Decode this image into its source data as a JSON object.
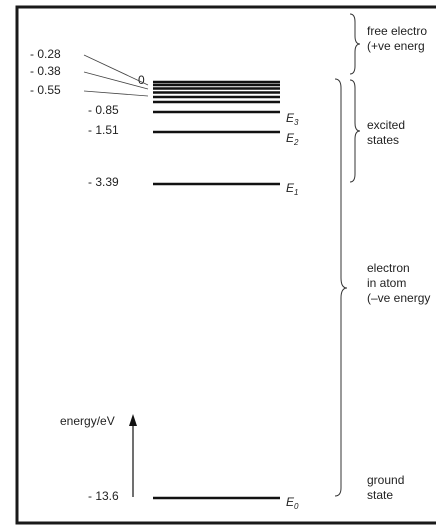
{
  "energy_levels": [
    {
      "value": "- 0.28",
      "dark": false
    },
    {
      "value": "- 0.38",
      "dark": false
    },
    {
      "value": "- 0.55",
      "dark": false
    },
    {
      "value": "- 0.85",
      "dark": false
    },
    {
      "value": "- 1.51",
      "dark": false
    },
    {
      "value": "- 3.39",
      "dark": false
    },
    {
      "value": "- 13.6",
      "dark": false
    }
  ],
  "zero_label": "0",
  "level_names": [
    {
      "letter": "E",
      "sub": "3"
    },
    {
      "letter": "E",
      "sub": "2"
    },
    {
      "letter": "E",
      "sub": "1"
    },
    {
      "letter": "E",
      "sub": "0"
    }
  ],
  "axis_label": "energy/eV",
  "regions": {
    "free": [
      "free electro",
      "(+ve energ"
    ],
    "excited": [
      "excited",
      "states"
    ],
    "atom": [
      "electron",
      "in atom",
      "(–ve energy"
    ],
    "ground": [
      "ground",
      "state"
    ]
  },
  "colors": {
    "line": "#111111",
    "text": "#222222",
    "border": "#1a1a1a"
  }
}
